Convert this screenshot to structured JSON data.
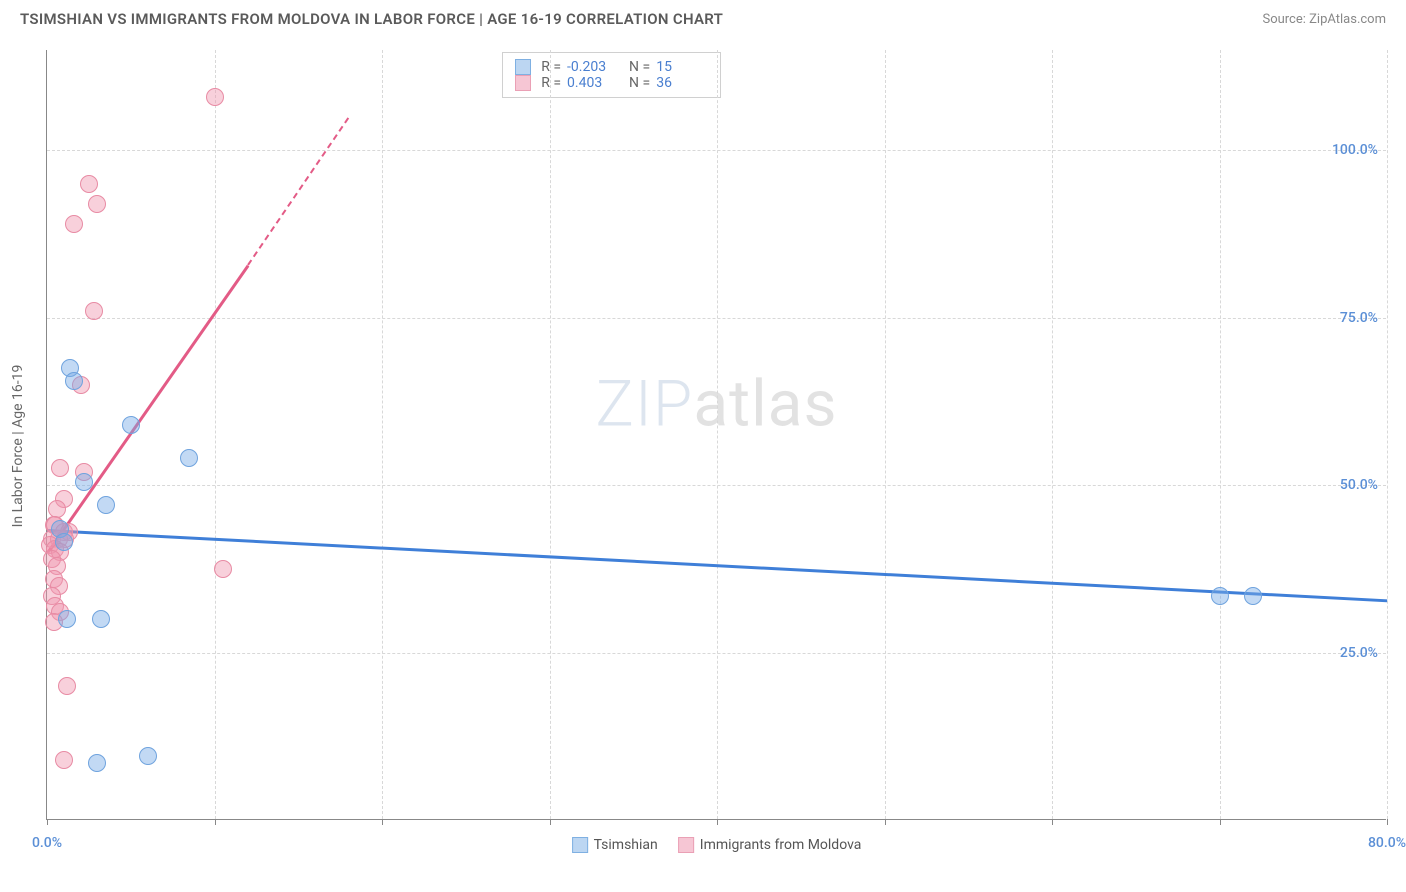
{
  "title": "TSIMSHIAN VS IMMIGRANTS FROM MOLDOVA IN LABOR FORCE | AGE 16-19 CORRELATION CHART",
  "source": "Source: ZipAtlas.com",
  "y_axis_title": "In Labor Force | Age 16-19",
  "watermark_a": "ZIP",
  "watermark_b": "atlas",
  "chart": {
    "type": "scatter",
    "xlim": [
      0,
      80
    ],
    "ylim": [
      0,
      115
    ],
    "x_ticks": [
      0,
      10,
      20,
      30,
      40,
      50,
      60,
      70,
      80
    ],
    "x_tick_labels": {
      "0": "0.0%",
      "80": "80.0%"
    },
    "y_ticks": [
      25,
      50,
      75,
      100
    ],
    "y_tick_labels": {
      "25": "25.0%",
      "50": "50.0%",
      "75": "75.0%",
      "100": "100.0%"
    },
    "background_color": "#ffffff",
    "grid_color": "#d8d8d8",
    "axis_color": "#888888",
    "tick_label_color": "#5b8fd6",
    "point_radius": 9,
    "series": [
      {
        "name": "Tsimshian",
        "fill": "rgba(120,170,230,0.45)",
        "stroke": "#6fa3de",
        "swatch_fill": "#bcd6f2",
        "swatch_stroke": "#7fb0e2",
        "r_value": "-0.203",
        "n_value": "15",
        "points": [
          [
            1.4,
            67.5
          ],
          [
            1.6,
            65.5
          ],
          [
            5.0,
            59.0
          ],
          [
            8.5,
            54.0
          ],
          [
            2.2,
            50.5
          ],
          [
            3.5,
            47.0
          ],
          [
            0.8,
            43.5
          ],
          [
            1.0,
            41.5
          ],
          [
            1.2,
            30.0
          ],
          [
            3.2,
            30.0
          ],
          [
            70.0,
            33.5
          ],
          [
            72.0,
            33.5
          ],
          [
            3.0,
            8.5
          ],
          [
            6.0,
            9.5
          ]
        ],
        "trend": {
          "x1": 0,
          "y1": 43.5,
          "x2": 80,
          "y2": 33.0,
          "color": "#3f7fd8",
          "dashed": false
        }
      },
      {
        "name": "Immigrants from Moldova",
        "fill": "rgba(240,150,175,0.45)",
        "stroke": "#e88ba4",
        "swatch_fill": "#f6c6d4",
        "swatch_stroke": "#eaa0b5",
        "r_value": "0.403",
        "n_value": "36",
        "points": [
          [
            10.0,
            108.0
          ],
          [
            2.5,
            95.0
          ],
          [
            3.0,
            92.0
          ],
          [
            1.6,
            89.0
          ],
          [
            2.8,
            76.0
          ],
          [
            2.0,
            65.0
          ],
          [
            0.8,
            52.5
          ],
          [
            2.2,
            52.0
          ],
          [
            1.0,
            48.0
          ],
          [
            0.6,
            46.5
          ],
          [
            0.4,
            44.0
          ],
          [
            0.5,
            44.0
          ],
          [
            1.0,
            43.0
          ],
          [
            1.3,
            43.0
          ],
          [
            0.3,
            42.0
          ],
          [
            0.7,
            42.0
          ],
          [
            1.1,
            42.0
          ],
          [
            0.2,
            41.0
          ],
          [
            0.5,
            40.5
          ],
          [
            0.8,
            40.0
          ],
          [
            0.3,
            39.0
          ],
          [
            0.6,
            38.0
          ],
          [
            10.5,
            37.5
          ],
          [
            0.4,
            36.0
          ],
          [
            0.7,
            35.0
          ],
          [
            0.3,
            33.5
          ],
          [
            0.5,
            32.0
          ],
          [
            0.8,
            31.0
          ],
          [
            0.4,
            29.5
          ],
          [
            1.2,
            20.0
          ],
          [
            1.0,
            9.0
          ]
        ],
        "trend_segments": [
          {
            "x1": 0,
            "y1": 40.0,
            "x2": 12.0,
            "y2": 83.0,
            "color": "#e35b86",
            "dashed": false
          },
          {
            "x1": 12.0,
            "y1": 83.0,
            "x2": 18.0,
            "y2": 105.0,
            "color": "#e35b86",
            "dashed": true
          }
        ]
      }
    ]
  },
  "corr_legend": {
    "r_label": "R =",
    "n_label": "N ="
  },
  "bottom_legend": {
    "items": [
      "Tsimshian",
      "Immigrants from Moldova"
    ]
  }
}
